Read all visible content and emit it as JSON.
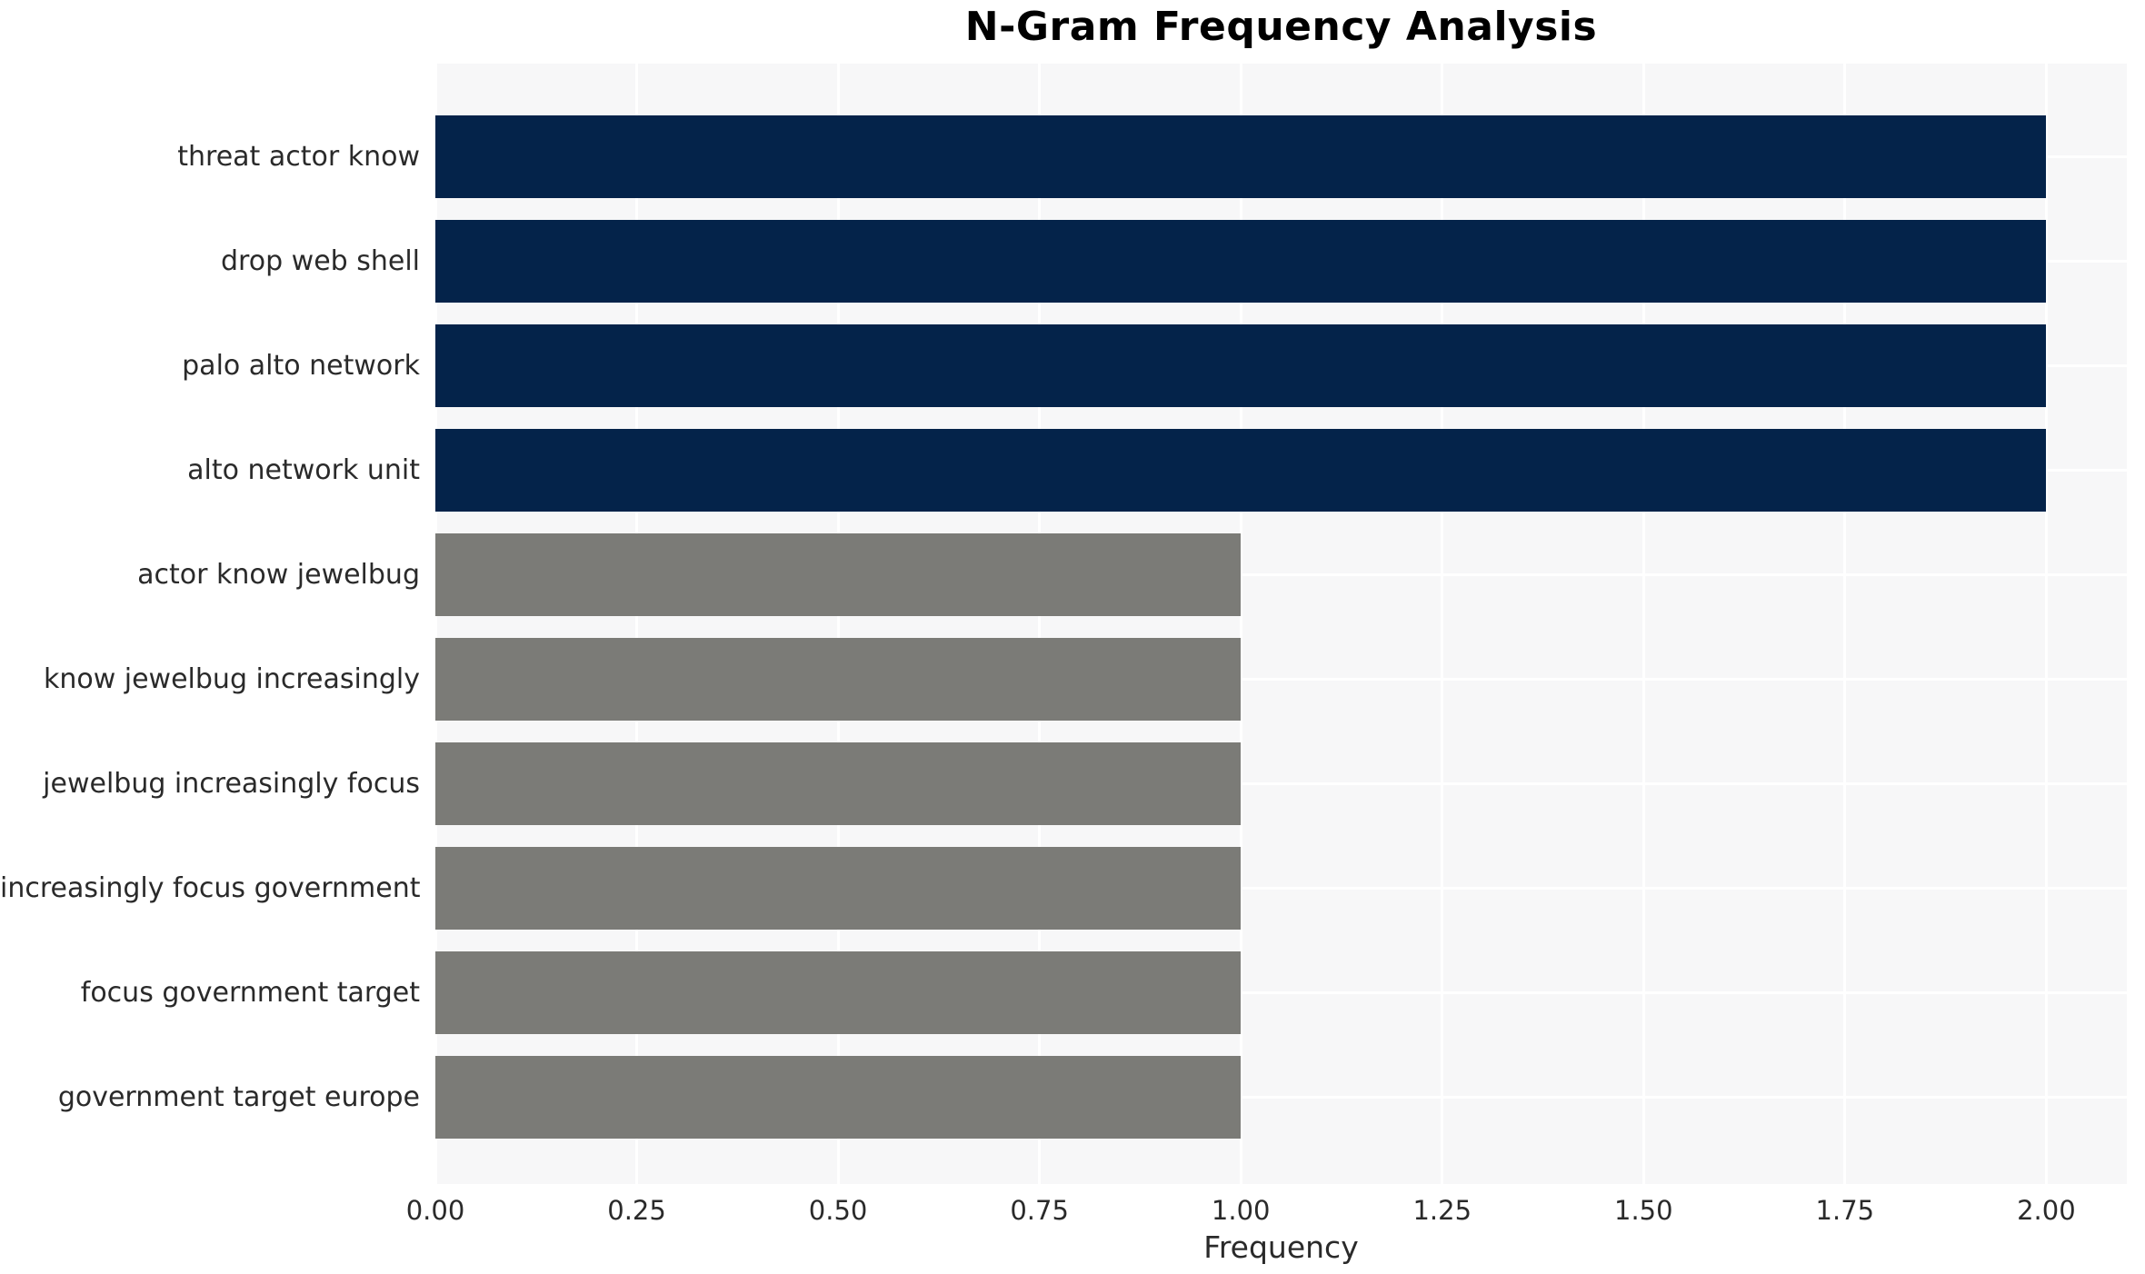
{
  "chart_data": {
    "type": "bar",
    "orientation": "horizontal",
    "title": "N-Gram Frequency Analysis",
    "xlabel": "Frequency",
    "ylabel": "",
    "categories": [
      "threat actor know",
      "drop web shell",
      "palo alto network",
      "alto network unit",
      "actor know jewelbug",
      "know jewelbug increasingly",
      "jewelbug increasingly focus",
      "increasingly focus government",
      "focus government target",
      "government target europe"
    ],
    "values": [
      2,
      2,
      2,
      2,
      1,
      1,
      1,
      1,
      1,
      1
    ],
    "bar_colors": [
      "#04234a",
      "#04234a",
      "#04234a",
      "#04234a",
      "#7b7b77",
      "#7b7b77",
      "#7b7b77",
      "#7b7b77",
      "#7b7b77",
      "#7b7b77"
    ],
    "xlim": [
      0,
      2.1
    ],
    "xticks": [
      0,
      0.25,
      0.5,
      0.75,
      1.0,
      1.25,
      1.5,
      1.75,
      2.0
    ],
    "xtick_labels": [
      "0.00",
      "0.25",
      "0.50",
      "0.75",
      "1.00",
      "1.25",
      "1.50",
      "1.75",
      "2.00"
    ],
    "grid": true,
    "legend": "none"
  },
  "style": {
    "page_bg": "#ffffff",
    "plot_bg": "#f7f7f8",
    "grid_color": "#ffffff",
    "highlight_color": "#04234a",
    "muted_color": "#7b7b77",
    "text_color": "#2a2a2a",
    "title_color": "#000000"
  }
}
